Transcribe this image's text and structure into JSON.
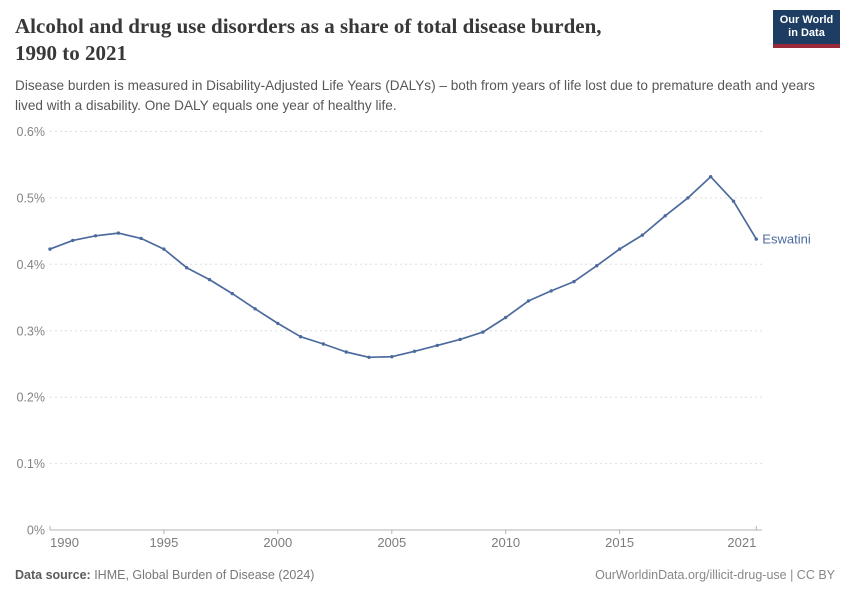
{
  "header": {
    "title_line1": "Alcohol and drug use disorders as a share of total disease burden,",
    "title_line2": "1990 to 2021",
    "subtitle": "Disease burden is measured in Disability-Adjusted Life Years (DALYs) – both from years of life lost due to premature death and years lived with a disability. One DALY equals one year of healthy life.",
    "logo": {
      "line1": "Our World",
      "line2": "in Data"
    }
  },
  "chart_data": {
    "type": "line",
    "title": "Alcohol and drug use disorders as a share of total disease burden, 1990 to 2021",
    "xlabel": "",
    "ylabel": "",
    "unit": "%",
    "xlim": [
      1990,
      2021
    ],
    "ylim": [
      0,
      0.6
    ],
    "grid": "horizontal-dashed",
    "legend_position": "end-of-line-label",
    "x_ticks": [
      {
        "value": 1990,
        "label": "1990"
      },
      {
        "value": 1995,
        "label": "1995"
      },
      {
        "value": 2000,
        "label": "2000"
      },
      {
        "value": 2005,
        "label": "2005"
      },
      {
        "value": 2010,
        "label": "2010"
      },
      {
        "value": 2015,
        "label": "2015"
      },
      {
        "value": 2021,
        "label": "2021"
      }
    ],
    "y_ticks": [
      {
        "value": 0,
        "label": "0%"
      },
      {
        "value": 0.1,
        "label": "0.1%"
      },
      {
        "value": 0.2,
        "label": "0.2%"
      },
      {
        "value": 0.3,
        "label": "0.3%"
      },
      {
        "value": 0.4,
        "label": "0.4%"
      },
      {
        "value": 0.5,
        "label": "0.5%"
      },
      {
        "value": 0.6,
        "label": "0.6%"
      }
    ],
    "series": [
      {
        "name": "Eswatini",
        "color": "#4c6a9c",
        "x": [
          1990,
          1991,
          1992,
          1993,
          1994,
          1995,
          1996,
          1997,
          1998,
          1999,
          2000,
          2001,
          2002,
          2003,
          2004,
          2005,
          2006,
          2007,
          2008,
          2009,
          2010,
          2011,
          2012,
          2013,
          2014,
          2015,
          2016,
          2017,
          2018,
          2019,
          2020,
          2021
        ],
        "values": [
          0.423,
          0.436,
          0.443,
          0.447,
          0.439,
          0.423,
          0.395,
          0.377,
          0.356,
          0.333,
          0.311,
          0.291,
          0.28,
          0.268,
          0.26,
          0.261,
          0.269,
          0.278,
          0.287,
          0.298,
          0.32,
          0.345,
          0.36,
          0.374,
          0.398,
          0.423,
          0.444,
          0.473,
          0.5,
          0.532,
          0.495,
          0.438
        ]
      }
    ]
  },
  "footer": {
    "source_label": "Data source:",
    "source_value": " IHME, Global Burden of Disease (2024)",
    "credit": "OurWorldinData.org/illicit-drug-use | CC BY"
  },
  "colors": {
    "line": "#4c6a9c",
    "logo_background": "#1d3d63",
    "logo_accent_bar": "#9a2a3a",
    "gridline": "#dedede",
    "axis": "#b3b3b3",
    "title_text": "#383838",
    "subtitle_text": "#575757"
  }
}
